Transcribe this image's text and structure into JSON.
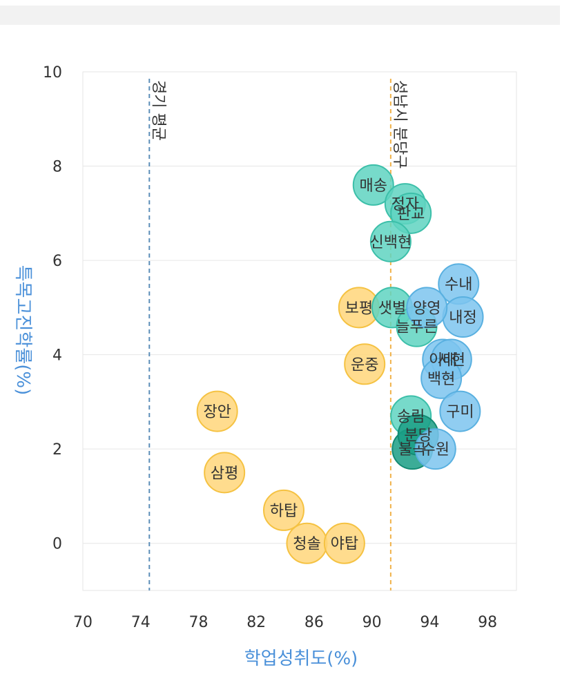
{
  "chart_data": {
    "type": "scatter",
    "title": "",
    "xlabel": "학업성취도(%)",
    "ylabel": "특목고진학률(%)",
    "xlim": [
      70,
      100
    ],
    "ylim": [
      -1,
      10
    ],
    "x_ticks": [
      "70",
      "74",
      "78",
      "82",
      "86",
      "90",
      "94",
      "98"
    ],
    "y_ticks": [
      "10",
      "8",
      "6",
      "4",
      "2",
      "0"
    ],
    "grid": true,
    "reference_lines": [
      {
        "label": "경기 평균",
        "x": 74.6,
        "color": "#5b8db8"
      },
      {
        "label": "성남시 분당구",
        "x": 91.3,
        "color": "#f0b24a"
      }
    ],
    "series": [
      {
        "color": "#ffd67a",
        "stroke": "#f5c242",
        "points": [
          {
            "label": "보평",
            "x": 89.1,
            "y": 5.0
          },
          {
            "label": "운중",
            "x": 89.5,
            "y": 3.8
          },
          {
            "label": "장안",
            "x": 79.3,
            "y": 2.8
          },
          {
            "label": "삼평",
            "x": 79.8,
            "y": 1.5
          },
          {
            "label": "하탑",
            "x": 83.9,
            "y": 0.7
          },
          {
            "label": "청솔",
            "x": 85.5,
            "y": 0.0
          },
          {
            "label": "야탑",
            "x": 88.1,
            "y": 0.0
          }
        ]
      },
      {
        "color": "#5fd3c1",
        "stroke": "#3cbfa9",
        "points": [
          {
            "label": "매송",
            "x": 90.1,
            "y": 7.6
          },
          {
            "label": "정자",
            "x": 92.3,
            "y": 7.2
          },
          {
            "label": "판교",
            "x": 92.7,
            "y": 7.0
          },
          {
            "label": "신백현",
            "x": 91.3,
            "y": 6.4
          },
          {
            "label": "샛별",
            "x": 91.4,
            "y": 5.0
          },
          {
            "label": "늘푸른",
            "x": 93.1,
            "y": 4.6
          },
          {
            "label": "송림",
            "x": 92.7,
            "y": 2.7
          }
        ]
      },
      {
        "color": "#1a9e85",
        "stroke": "#138a73",
        "points": [
          {
            "label": "불곡",
            "x": 92.8,
            "y": 2.0
          },
          {
            "label": "분당",
            "x": 93.2,
            "y": 2.3
          }
        ]
      },
      {
        "color": "#7cc4ee",
        "stroke": "#59b0e0",
        "points": [
          {
            "label": "수내",
            "x": 96.0,
            "y": 5.5
          },
          {
            "label": "내정",
            "x": 96.3,
            "y": 4.8
          },
          {
            "label": "양영",
            "x": 93.8,
            "y": 5.0
          },
          {
            "label": "이매",
            "x": 94.9,
            "y": 3.9
          },
          {
            "label": "서현",
            "x": 95.5,
            "y": 3.9
          },
          {
            "label": "백현",
            "x": 94.8,
            "y": 3.5
          },
          {
            "label": "구미",
            "x": 96.1,
            "y": 2.8
          },
          {
            "label": "수원",
            "x": 94.4,
            "y": 2.0
          }
        ]
      }
    ]
  }
}
